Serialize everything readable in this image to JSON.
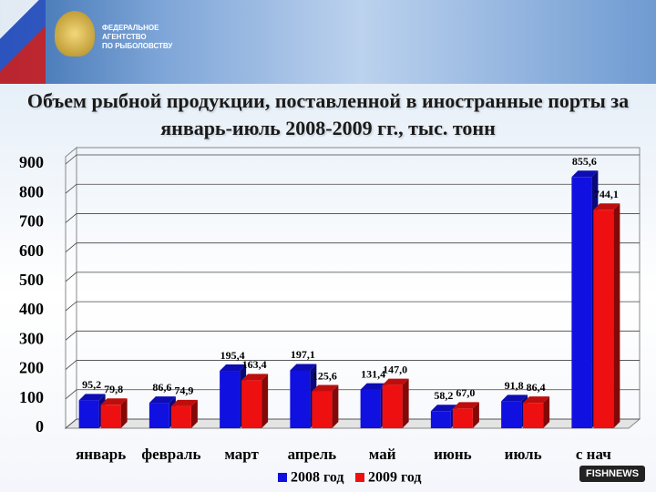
{
  "header": {
    "agency": [
      "ФЕДЕРАЛЬНОЕ",
      "АГЕНТСТВО",
      "ПО РЫБОЛОВСТВУ"
    ],
    "logo": "FISHNEWS"
  },
  "chart_data": {
    "type": "bar",
    "title": "Объем рыбной продукции, поставленной в иностранные порты за январь-июль 2008-2009 гг., тыс. тонн",
    "categories": [
      "январь",
      "февраль",
      "март",
      "апрель",
      "май",
      "июнь",
      "июль",
      "с нач"
    ],
    "series": [
      {
        "name": "2008 год",
        "color": "#1010e0",
        "values": [
          95.2,
          86.6,
          195.4,
          197.1,
          131.4,
          58.2,
          91.8,
          855.6
        ],
        "value_labels": [
          "95,2",
          "86,6",
          "195,4",
          "197,1",
          "131,4",
          "58,2",
          "91,8",
          "855,6"
        ]
      },
      {
        "name": "2009 год",
        "color": "#ee1010",
        "values": [
          79.8,
          74.9,
          163.4,
          125.6,
          147.0,
          67.0,
          86.4,
          744.1
        ],
        "value_labels": [
          "79,8",
          "74,9",
          "163,4",
          "125,6",
          "147,0",
          "67,0",
          "86,4",
          "744,1"
        ]
      }
    ],
    "ylim": [
      0,
      900
    ],
    "yticks": [
      0,
      100,
      200,
      300,
      400,
      500,
      600,
      700,
      800,
      900
    ],
    "grid": true
  }
}
